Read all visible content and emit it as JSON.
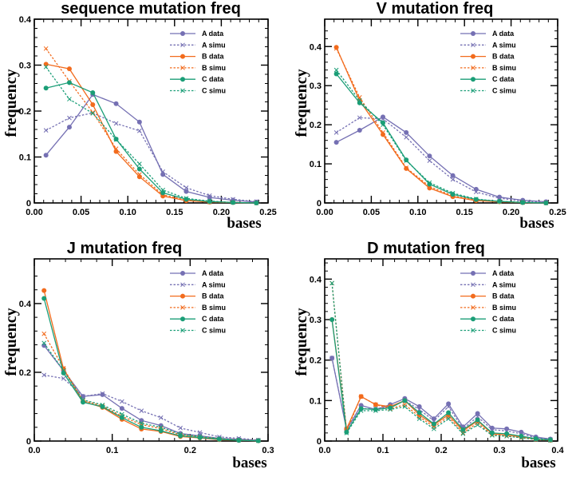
{
  "series_styles": [
    {
      "name": "A data",
      "color": "#7570b3",
      "dashed": false
    },
    {
      "name": "A simu",
      "color": "#7570b3",
      "dashed": true
    },
    {
      "name": "B data",
      "color": "#f26b1d",
      "dashed": false
    },
    {
      "name": "B simu",
      "color": "#f26b1d",
      "dashed": true
    },
    {
      "name": "C data",
      "color": "#1b9e77",
      "dashed": false
    },
    {
      "name": "C simu",
      "color": "#1b9e77",
      "dashed": true
    }
  ],
  "chart_data": [
    {
      "type": "line",
      "title": "sequence mutation freq",
      "xlabel": "bases",
      "ylabel": "frequency",
      "xlim": [
        0,
        0.25
      ],
      "ylim": [
        0,
        0.4
      ],
      "xticks": [
        0.0,
        0.05,
        0.1,
        0.15,
        0.2,
        0.25
      ],
      "xtick_labels": [
        "0.00",
        "0.05",
        "0.10",
        "0.15",
        "0.20",
        "0.25"
      ],
      "yticks": [
        0,
        0.1,
        0.2,
        0.3,
        0.4
      ],
      "ytick_labels": [
        "0",
        "0.1",
        "0.2",
        "0.3",
        "0.4"
      ],
      "x": [
        0.0125,
        0.0375,
        0.0625,
        0.0875,
        0.1125,
        0.1375,
        0.1625,
        0.1875,
        0.2125,
        0.2375
      ],
      "series": [
        {
          "name": "A data",
          "values": [
            0.104,
            0.165,
            0.236,
            0.216,
            0.176,
            0.062,
            0.025,
            0.012,
            0.006,
            0.002
          ]
        },
        {
          "name": "A simu",
          "values": [
            0.158,
            0.185,
            0.196,
            0.173,
            0.157,
            0.068,
            0.033,
            0.016,
            0.008,
            0.003
          ]
        },
        {
          "name": "B data",
          "values": [
            0.302,
            0.292,
            0.214,
            0.112,
            0.057,
            0.015,
            0.005,
            0.002,
            0.001,
            0.0
          ]
        },
        {
          "name": "B simu",
          "values": [
            0.336,
            0.265,
            0.197,
            0.118,
            0.062,
            0.018,
            0.006,
            0.002,
            0.001,
            0.0
          ]
        },
        {
          "name": "C data",
          "values": [
            0.25,
            0.262,
            0.24,
            0.139,
            0.074,
            0.022,
            0.008,
            0.003,
            0.001,
            0.0
          ]
        },
        {
          "name": "C simu",
          "values": [
            0.296,
            0.226,
            0.195,
            0.138,
            0.085,
            0.028,
            0.01,
            0.004,
            0.001,
            0.0
          ]
        }
      ]
    },
    {
      "type": "line",
      "title": "V mutation freq",
      "xlabel": "bases",
      "ylabel": "frequency",
      "xlim": [
        0,
        0.25
      ],
      "ylim": [
        0,
        0.47
      ],
      "xticks": [
        0.0,
        0.05,
        0.1,
        0.15,
        0.2,
        0.25
      ],
      "xtick_labels": [
        "0.00",
        "0.05",
        "0.10",
        "0.15",
        "0.20",
        "0.25"
      ],
      "yticks": [
        0,
        0.1,
        0.2,
        0.3,
        0.4
      ],
      "ytick_labels": [
        "0",
        "0.1",
        "0.2",
        "0.3",
        "0.4"
      ],
      "x": [
        0.0125,
        0.0375,
        0.0625,
        0.0875,
        0.1125,
        0.1375,
        0.1625,
        0.1875,
        0.2125,
        0.2375
      ],
      "series": [
        {
          "name": "A data",
          "values": [
            0.155,
            0.186,
            0.22,
            0.18,
            0.12,
            0.07,
            0.035,
            0.015,
            0.007,
            0.003
          ]
        },
        {
          "name": "A simu",
          "values": [
            0.18,
            0.218,
            0.215,
            0.168,
            0.108,
            0.06,
            0.028,
            0.012,
            0.005,
            0.002
          ]
        },
        {
          "name": "B data",
          "values": [
            0.398,
            0.262,
            0.175,
            0.088,
            0.038,
            0.016,
            0.006,
            0.003,
            0.001,
            0.0
          ]
        },
        {
          "name": "B simu",
          "values": [
            0.395,
            0.27,
            0.18,
            0.09,
            0.042,
            0.018,
            0.007,
            0.003,
            0.001,
            0.0
          ]
        },
        {
          "name": "C data",
          "values": [
            0.33,
            0.256,
            0.205,
            0.11,
            0.048,
            0.022,
            0.009,
            0.004,
            0.001,
            0.0
          ]
        },
        {
          "name": "C simu",
          "values": [
            0.34,
            0.262,
            0.2,
            0.108,
            0.052,
            0.025,
            0.01,
            0.004,
            0.002,
            0.0
          ]
        }
      ]
    },
    {
      "type": "line",
      "title": "J mutation freq",
      "xlabel": "bases",
      "ylabel": "frequency",
      "xlim": [
        0,
        0.3
      ],
      "ylim": [
        0,
        0.53
      ],
      "xticks": [
        0,
        0.1,
        0.2,
        0.3
      ],
      "xtick_labels": [
        "0.0",
        "0.1",
        "0.2",
        "0.3"
      ],
      "yticks": [
        0,
        0.2,
        0.4
      ],
      "ytick_labels": [
        "0",
        "0.2",
        "0.4"
      ],
      "x": [
        0.0125,
        0.0375,
        0.0625,
        0.0875,
        0.1125,
        0.1375,
        0.1625,
        0.1875,
        0.2125,
        0.2375,
        0.2625,
        0.2875
      ],
      "series": [
        {
          "name": "A data",
          "values": [
            0.278,
            0.205,
            0.13,
            0.135,
            0.095,
            0.06,
            0.045,
            0.022,
            0.015,
            0.008,
            0.005,
            0.002
          ]
        },
        {
          "name": "A simu",
          "values": [
            0.192,
            0.182,
            0.13,
            0.138,
            0.115,
            0.088,
            0.068,
            0.038,
            0.025,
            0.012,
            0.008,
            0.003
          ]
        },
        {
          "name": "B data",
          "values": [
            0.438,
            0.21,
            0.115,
            0.098,
            0.063,
            0.035,
            0.028,
            0.013,
            0.009,
            0.004,
            0.002,
            0.001
          ]
        },
        {
          "name": "B simu",
          "values": [
            0.312,
            0.212,
            0.118,
            0.102,
            0.072,
            0.048,
            0.036,
            0.018,
            0.012,
            0.006,
            0.003,
            0.001
          ]
        },
        {
          "name": "C data",
          "values": [
            0.415,
            0.198,
            0.113,
            0.1,
            0.068,
            0.04,
            0.03,
            0.015,
            0.01,
            0.005,
            0.002,
            0.001
          ]
        },
        {
          "name": "C simu",
          "values": [
            0.285,
            0.205,
            0.12,
            0.105,
            0.078,
            0.052,
            0.04,
            0.02,
            0.013,
            0.007,
            0.003,
            0.001
          ]
        }
      ]
    },
    {
      "type": "line",
      "title": "D mutation freq",
      "xlabel": "bases",
      "ylabel": "frequency",
      "xlim": [
        0,
        0.4
      ],
      "ylim": [
        0,
        0.45
      ],
      "xticks": [
        0,
        0.1,
        0.2,
        0.3,
        0.4
      ],
      "xtick_labels": [
        "0.0",
        "0.1",
        "0.2",
        "0.3",
        "0.4"
      ],
      "yticks": [
        0,
        0.1,
        0.2,
        0.3,
        0.4
      ],
      "ytick_labels": [
        "0",
        "0.1",
        "0.2",
        "0.3",
        "0.4"
      ],
      "x": [
        0.0125,
        0.0375,
        0.0625,
        0.0875,
        0.1125,
        0.1375,
        0.1625,
        0.1875,
        0.2125,
        0.2375,
        0.2625,
        0.2875,
        0.3125,
        0.3375,
        0.3625,
        0.3875
      ],
      "series": [
        {
          "name": "A data",
          "values": [
            0.205,
            0.028,
            0.088,
            0.078,
            0.09,
            0.105,
            0.085,
            0.055,
            0.092,
            0.035,
            0.068,
            0.032,
            0.03,
            0.022,
            0.01,
            0.005
          ]
        },
        {
          "name": "A simu",
          "values": [
            0.205,
            0.03,
            0.08,
            0.08,
            0.085,
            0.1,
            0.078,
            0.05,
            0.085,
            0.03,
            0.06,
            0.028,
            0.025,
            0.018,
            0.008,
            0.004
          ]
        },
        {
          "name": "B data",
          "values": [
            0.3,
            0.03,
            0.11,
            0.09,
            0.085,
            0.1,
            0.065,
            0.04,
            0.065,
            0.025,
            0.05,
            0.018,
            0.015,
            0.01,
            0.005,
            0.002
          ]
        },
        {
          "name": "B simu",
          "values": [
            0.39,
            0.025,
            0.11,
            0.09,
            0.08,
            0.09,
            0.06,
            0.035,
            0.06,
            0.02,
            0.045,
            0.015,
            0.012,
            0.008,
            0.004,
            0.002
          ]
        },
        {
          "name": "C data",
          "values": [
            0.3,
            0.022,
            0.08,
            0.078,
            0.082,
            0.1,
            0.07,
            0.042,
            0.07,
            0.028,
            0.052,
            0.02,
            0.018,
            0.012,
            0.006,
            0.003
          ]
        },
        {
          "name": "C simu",
          "values": [
            0.39,
            0.02,
            0.075,
            0.075,
            0.078,
            0.085,
            0.055,
            0.03,
            0.055,
            0.018,
            0.04,
            0.014,
            0.012,
            0.008,
            0.004,
            0.002
          ]
        }
      ]
    }
  ]
}
